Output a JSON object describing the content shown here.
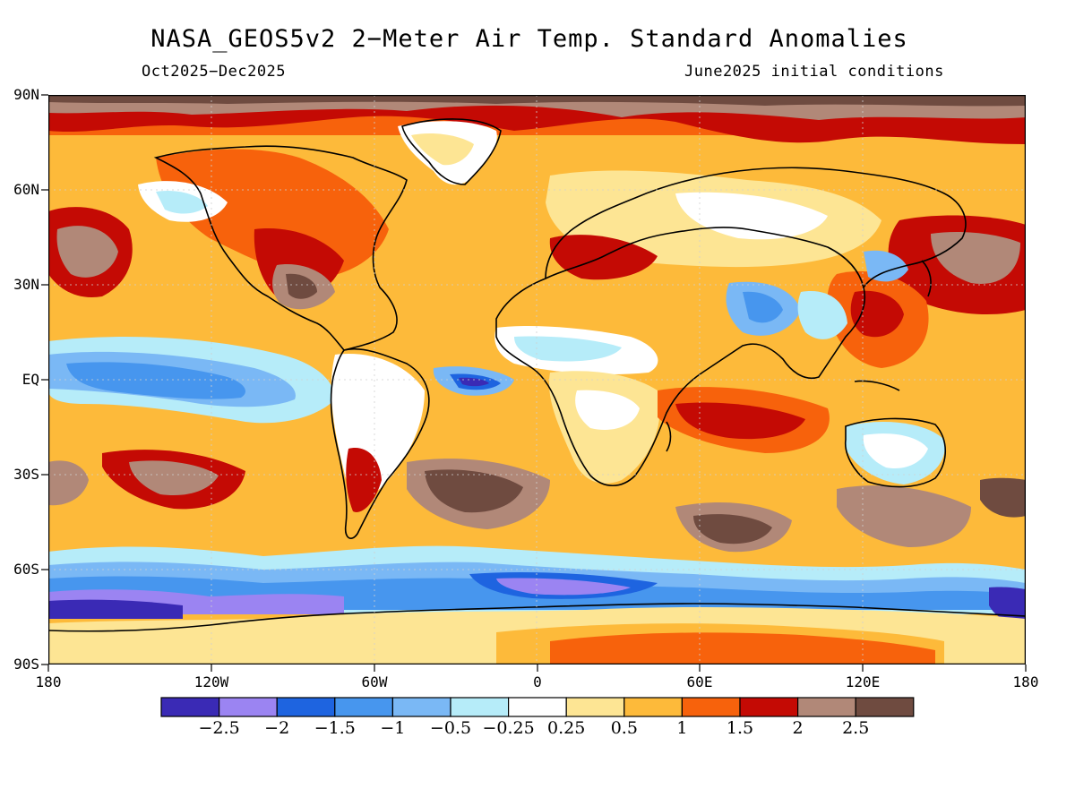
{
  "title": "NASA_GEOS5v2 2−Meter Air Temp. Standard Anomalies",
  "subtitle_left": "Oct2025−Dec2025",
  "subtitle_right": "June2025 initial conditions",
  "lat_labels": [
    "90N",
    "60N",
    "30N",
    "EQ",
    "30S",
    "60S",
    "90S"
  ],
  "lon_labels": [
    "180",
    "120W",
    "60W",
    "0",
    "60E",
    "120E",
    "180"
  ],
  "colorbar": {
    "colors": [
      "#3a2ab5",
      "#9b84f2",
      "#1e64e0",
      "#4796ee",
      "#7ab8f5",
      "#b6ecf9",
      "#ffffff",
      "#fde594",
      "#fdba3a",
      "#f7620c",
      "#c40a04",
      "#b18878",
      "#6f4b40"
    ],
    "labels": [
      "−2.5",
      "−2",
      "−1.5",
      "−1",
      "−0.5",
      "−0.25",
      "0.25",
      "0.5",
      "1",
      "1.5",
      "2",
      "2.5"
    ]
  }
}
